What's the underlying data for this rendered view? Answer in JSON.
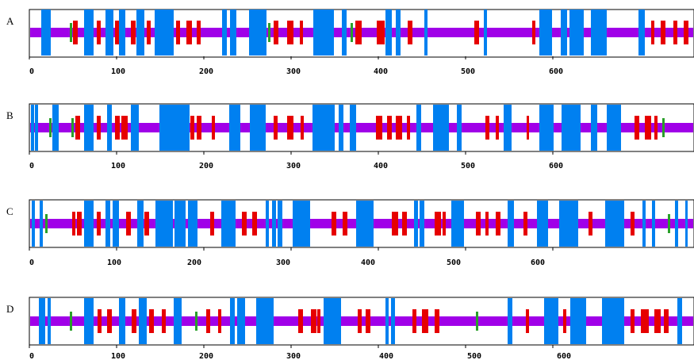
{
  "panels": [
    {
      "label": "A",
      "ticks": [
        "0",
        "100",
        "200",
        "300",
        "400",
        "500",
        "600"
      ]
    },
    {
      "label": "B",
      "ticks": [
        "0",
        "100",
        "200",
        "300",
        "400",
        "500",
        "600"
      ]
    },
    {
      "label": "C",
      "ticks": [
        "0",
        "100",
        "200",
        "300",
        "400",
        "500",
        "600"
      ]
    },
    {
      "label": "D",
      "ticks": [
        "0",
        "100",
        "200",
        "300",
        "400",
        "500",
        "600"
      ]
    }
  ],
  "colors": {
    "backbone": "#a000e8",
    "helix": "#e60000",
    "strand": "#0080f0",
    "turn": "#2aa02a",
    "frame": "#000000"
  }
}
